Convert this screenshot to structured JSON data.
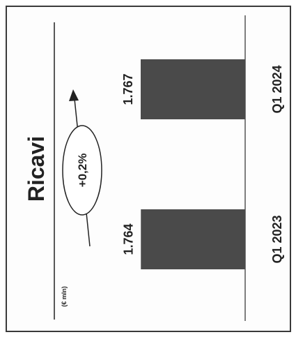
{
  "chart_data": {
    "type": "bar",
    "orientation": "rotated-90",
    "title": "Ricavi",
    "unit_label": "(€ mln)",
    "categories": [
      "Q1 2023",
      "Q1 2024"
    ],
    "values": [
      1.764,
      1.767
    ],
    "data_labels": [
      "1.764",
      "1.767"
    ],
    "annotation": "+0,2%",
    "grid": false,
    "legend": "none",
    "colors": {
      "bar": "#4a4a4a",
      "frame": "#3a3a3a"
    }
  }
}
